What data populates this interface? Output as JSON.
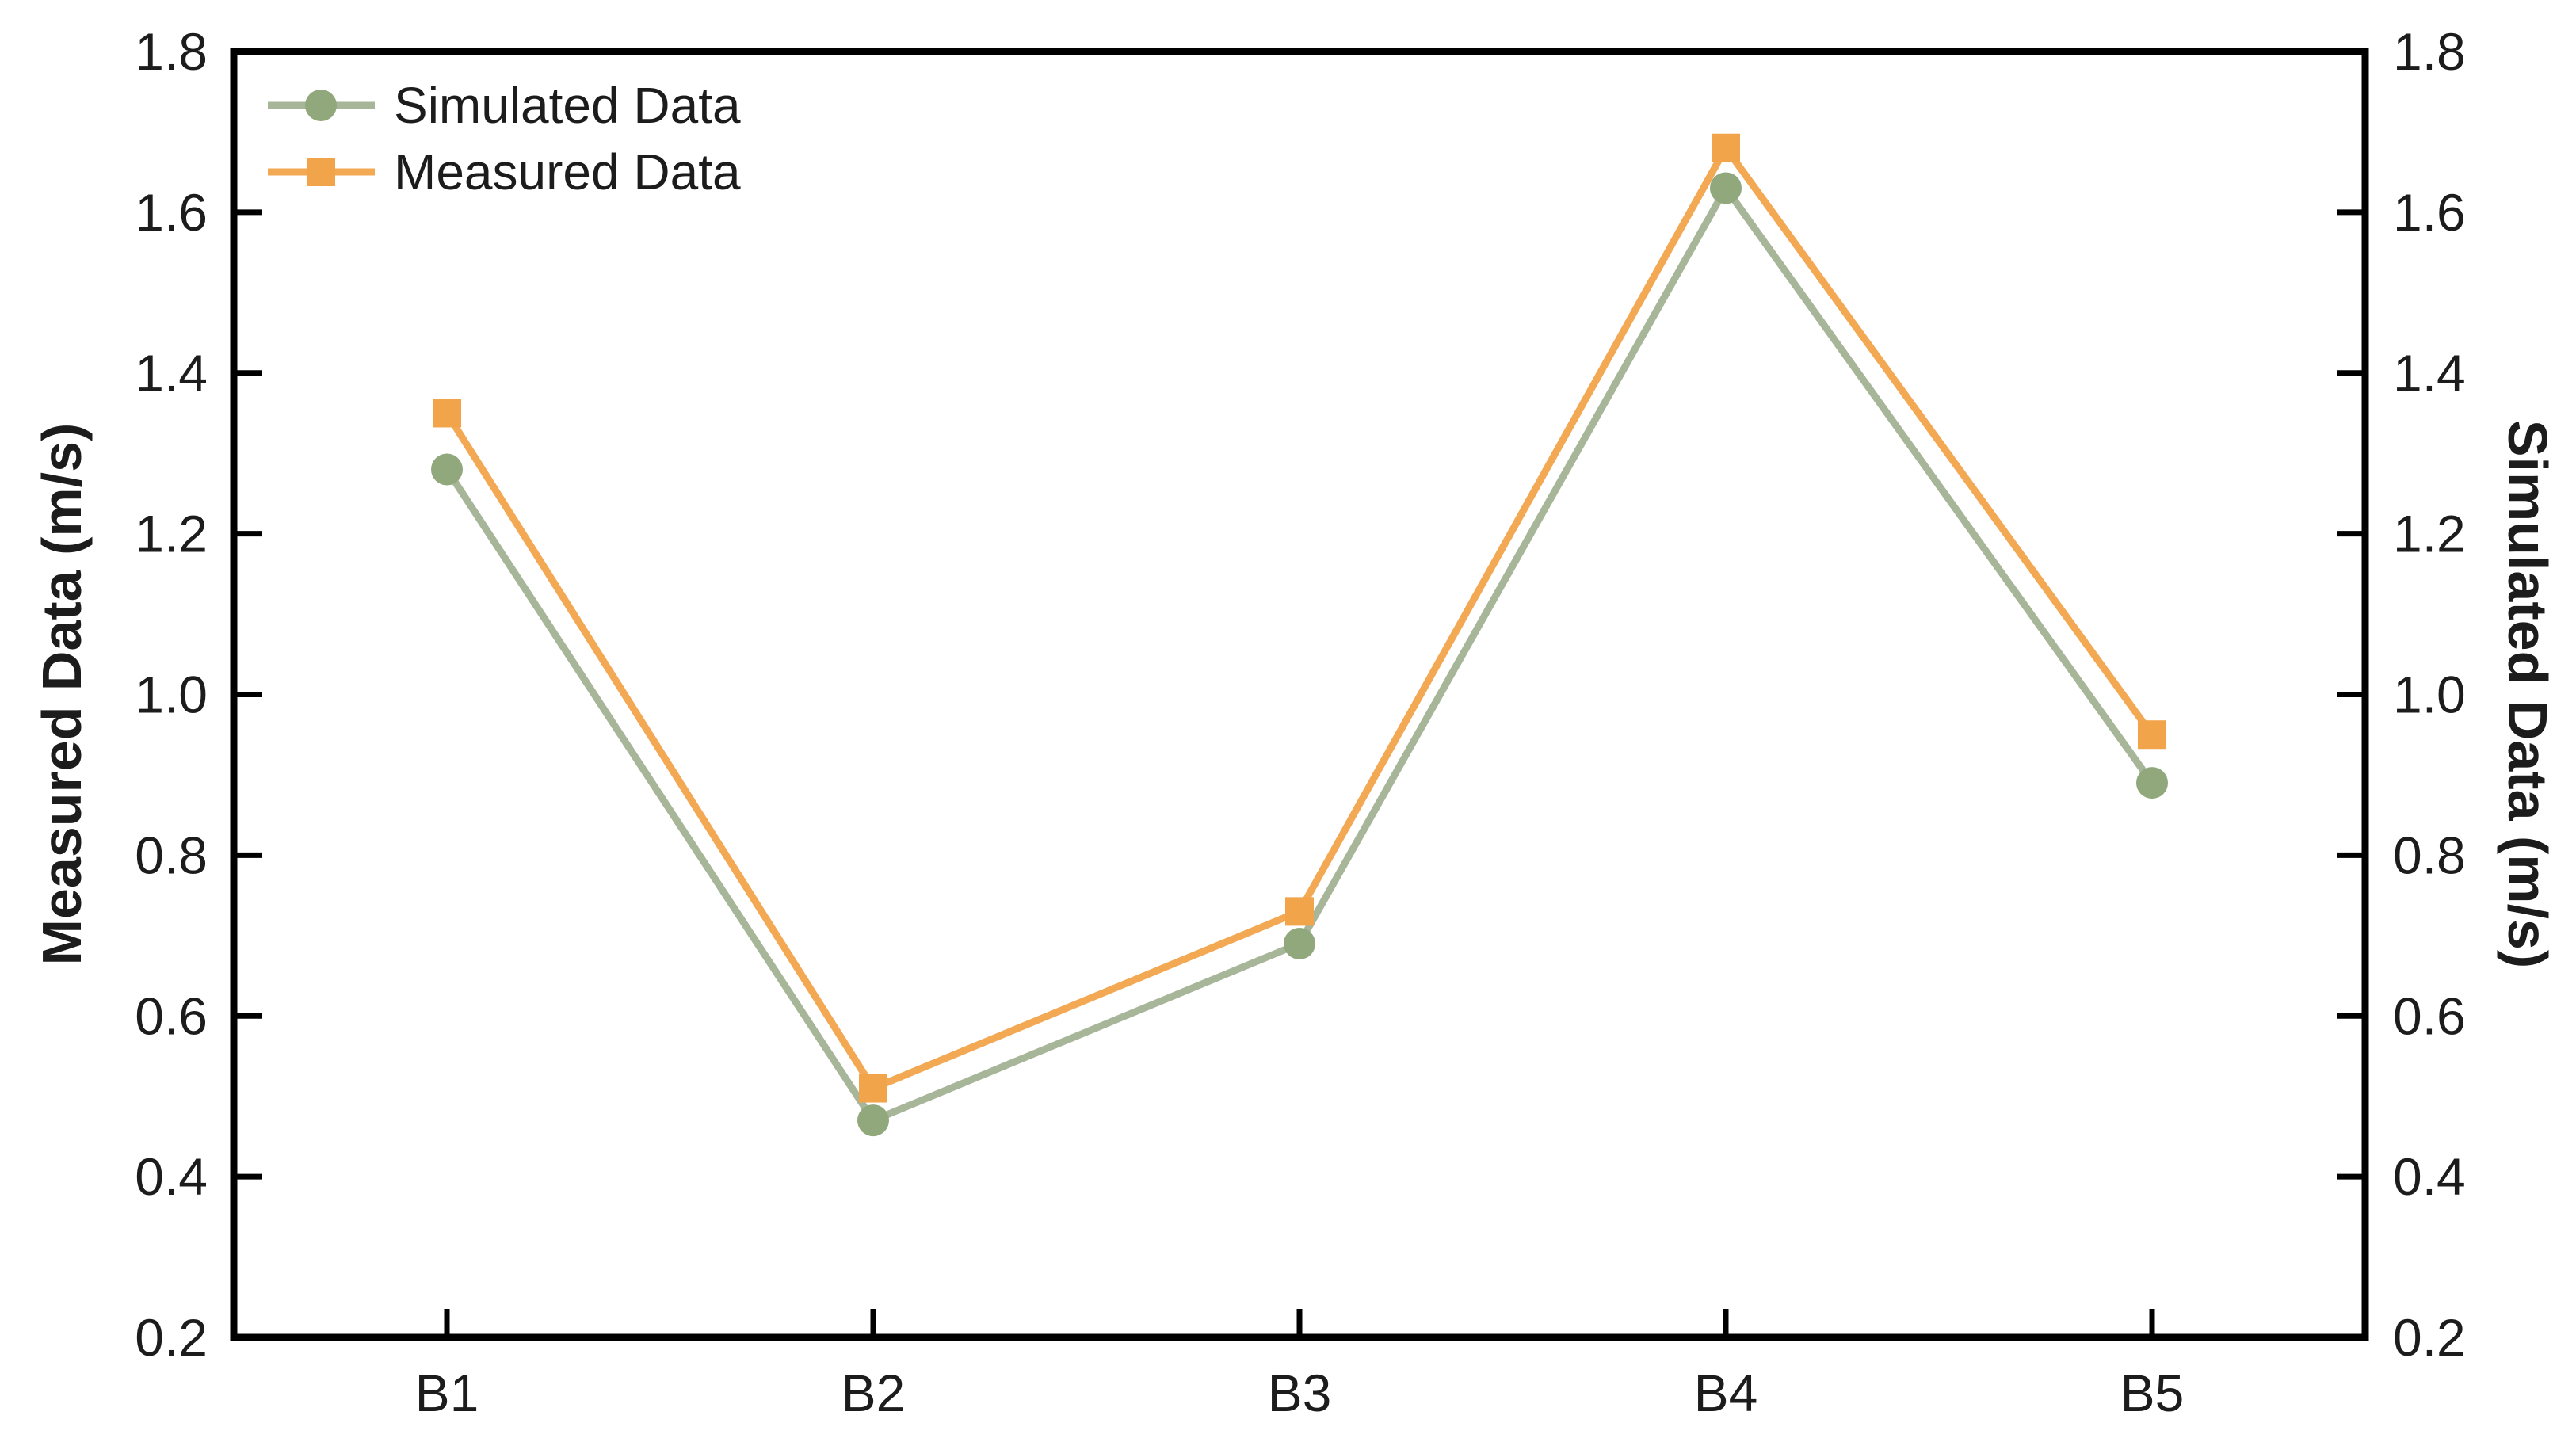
{
  "chart_data": {
    "type": "line",
    "categories": [
      "B1",
      "B2",
      "B3",
      "B4",
      "B5"
    ],
    "series": [
      {
        "name": "Simulated Data",
        "marker": "circle",
        "color": "#90a87c",
        "line_color": "#a7b598",
        "values": [
          1.28,
          0.47,
          0.69,
          1.63,
          0.89
        ]
      },
      {
        "name": "Measured Data",
        "marker": "square",
        "color": "#f2a44b",
        "line_color": "#f3a854",
        "values": [
          1.35,
          0.51,
          0.73,
          1.68,
          0.95
        ]
      }
    ],
    "title": "",
    "xlabel": "",
    "left_axis_label": "Measured Data (m/s)",
    "right_axis_label": "Simulated Data (m/s)",
    "ylim": [
      0.2,
      1.8
    ],
    "ytick_labels": [
      "0.2",
      "0.4",
      "0.6",
      "0.8",
      "1.0",
      "1.2",
      "1.4",
      "1.6",
      "1.8"
    ],
    "grid": false,
    "legend_position": "top-left",
    "axis_color": "#000000",
    "text_color": "#1c1c1c"
  }
}
